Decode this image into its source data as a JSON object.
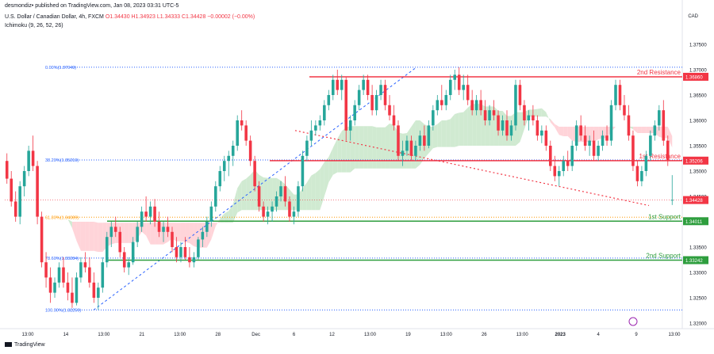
{
  "header": {
    "published_by": "desmondiz• published on TradingView.com, Jan 08, 2023 03:31 UTC-5",
    "symbol_line": "U.S. Dollar / Canadian Dollar, 4h, FXCM",
    "ohlc": "O1.34430 H1.34923 L1.34333 C1.34428 −0.00002 (−0.00%)",
    "indicator": "Ichimoku (9, 26, 52, 26)",
    "currency": "CAD"
  },
  "footer": {
    "logo_text": "TradingView"
  },
  "colors": {
    "up": "#26a69a",
    "down": "#f23645",
    "resistance": "#f23645",
    "support": "#2e9e3e",
    "fib_blue": "#2962ff",
    "fib_orange": "#ff9800",
    "cloud_bull": "#c8e6c9",
    "cloud_bear": "#ffcdd2",
    "axis_text": "#131722"
  },
  "chart_data": {
    "type": "candlestick",
    "y_range": [
      1.32,
      1.3775
    ],
    "y_ticks": [
      "1.37500",
      "1.37000",
      "1.36500",
      "1.36000",
      "1.35500",
      "1.35000",
      "1.34500",
      "1.34000",
      "1.33500",
      "1.33000",
      "1.32500",
      "1.32000"
    ],
    "x_tick_labels": [
      "13:00",
      "14",
      "13:00",
      "21",
      "13:00",
      "28",
      "Dec",
      "6",
      "12",
      "13:00",
      "19",
      "13:00",
      "26",
      "13:00",
      "2023",
      "4",
      "9",
      "13:00"
    ],
    "levels": [
      {
        "label": "2nd Resistance",
        "value": 1.3686,
        "value_text": "1.36860",
        "kind": "resistance"
      },
      {
        "label": "1st Resistance",
        "value": 1.35206,
        "value_text": "1.35206",
        "kind": "resistance"
      },
      {
        "label": "1st Support",
        "value": 1.34011,
        "value_text": "1.34011",
        "kind": "support"
      },
      {
        "label": "2nd Support",
        "value": 1.33242,
        "value_text": "1.33242",
        "kind": "support"
      }
    ],
    "last_price": {
      "value": 1.34428,
      "value_text": "1.34428"
    },
    "fib_levels": [
      {
        "label": "0.00%(1.37049)",
        "value": 1.37049,
        "color": "blue"
      },
      {
        "label": "38.20%(1.35219)",
        "value": 1.35219,
        "color": "blue"
      },
      {
        "label": "61.80%(1.34089)",
        "value": 1.34089,
        "color": "orange"
      },
      {
        "label": "78.60%(1.33284)",
        "value": 1.33284,
        "color": "blue"
      },
      {
        "label": "100.00%(1.32259)",
        "value": 1.32259,
        "color": "blue"
      }
    ],
    "candles": [
      [
        1.352,
        1.3535,
        1.3475,
        1.3485
      ],
      [
        1.3485,
        1.35,
        1.343,
        1.344
      ],
      [
        1.344,
        1.346,
        1.34,
        1.341
      ],
      [
        1.341,
        1.348,
        1.3395,
        1.347
      ],
      [
        1.347,
        1.351,
        1.345,
        1.35
      ],
      [
        1.35,
        1.355,
        1.349,
        1.354
      ],
      [
        1.354,
        1.357,
        1.35,
        1.351
      ],
      [
        1.351,
        1.352,
        1.3395,
        1.341
      ],
      [
        1.341,
        1.342,
        1.331,
        1.332
      ],
      [
        1.332,
        1.334,
        1.327,
        1.329
      ],
      [
        1.329,
        1.331,
        1.324,
        1.326
      ],
      [
        1.326,
        1.329,
        1.325,
        1.328
      ],
      [
        1.328,
        1.332,
        1.327,
        1.331
      ],
      [
        1.331,
        1.333,
        1.327,
        1.328
      ],
      [
        1.328,
        1.33,
        1.3245,
        1.326
      ],
      [
        1.326,
        1.329,
        1.323,
        1.324
      ],
      [
        1.324,
        1.33,
        1.3235,
        1.329
      ],
      [
        1.329,
        1.333,
        1.328,
        1.332
      ],
      [
        1.332,
        1.334,
        1.33,
        1.331
      ],
      [
        1.331,
        1.333,
        1.327,
        1.328
      ],
      [
        1.328,
        1.33,
        1.324,
        1.325
      ],
      [
        1.325,
        1.328,
        1.3226,
        1.327
      ],
      [
        1.327,
        1.333,
        1.326,
        1.332
      ],
      [
        1.332,
        1.338,
        1.331,
        1.337
      ],
      [
        1.337,
        1.34,
        1.335,
        1.339
      ],
      [
        1.339,
        1.341,
        1.337,
        1.338
      ],
      [
        1.338,
        1.339,
        1.333,
        1.334
      ],
      [
        1.334,
        1.335,
        1.33,
        1.331
      ],
      [
        1.331,
        1.333,
        1.3295,
        1.332
      ],
      [
        1.332,
        1.337,
        1.3315,
        1.336
      ],
      [
        1.336,
        1.34,
        1.335,
        1.339
      ],
      [
        1.339,
        1.343,
        1.338,
        1.342
      ],
      [
        1.342,
        1.345,
        1.34,
        1.341
      ],
      [
        1.341,
        1.344,
        1.3395,
        1.343
      ],
      [
        1.343,
        1.3445,
        1.339,
        1.34
      ],
      [
        1.34,
        1.342,
        1.337,
        1.338
      ],
      [
        1.338,
        1.34,
        1.336,
        1.339
      ],
      [
        1.339,
        1.341,
        1.337,
        1.338
      ],
      [
        1.338,
        1.339,
        1.334,
        1.335
      ],
      [
        1.335,
        1.337,
        1.332,
        1.333
      ],
      [
        1.333,
        1.336,
        1.332,
        1.335
      ],
      [
        1.335,
        1.337,
        1.3325,
        1.333
      ],
      [
        1.333,
        1.335,
        1.331,
        1.332
      ],
      [
        1.332,
        1.334,
        1.331,
        1.333
      ],
      [
        1.333,
        1.337,
        1.3325,
        1.3365
      ],
      [
        1.3365,
        1.339,
        1.335,
        1.338
      ],
      [
        1.338,
        1.341,
        1.337,
        1.34
      ],
      [
        1.34,
        1.344,
        1.339,
        1.343
      ],
      [
        1.343,
        1.348,
        1.342,
        1.347
      ],
      [
        1.347,
        1.351,
        1.346,
        1.35
      ],
      [
        1.35,
        1.353,
        1.348,
        1.352
      ],
      [
        1.352,
        1.354,
        1.349,
        1.353
      ],
      [
        1.353,
        1.356,
        1.351,
        1.355
      ],
      [
        1.355,
        1.361,
        1.354,
        1.36
      ],
      [
        1.36,
        1.362,
        1.358,
        1.359
      ],
      [
        1.359,
        1.36,
        1.355,
        1.356
      ],
      [
        1.356,
        1.357,
        1.351,
        1.352
      ],
      [
        1.352,
        1.353,
        1.346,
        1.347
      ],
      [
        1.347,
        1.348,
        1.342,
        1.343
      ],
      [
        1.343,
        1.344,
        1.34,
        1.341
      ],
      [
        1.341,
        1.343,
        1.3395,
        1.342
      ],
      [
        1.342,
        1.344,
        1.34,
        1.343
      ],
      [
        1.343,
        1.346,
        1.342,
        1.345
      ],
      [
        1.345,
        1.348,
        1.344,
        1.347
      ],
      [
        1.347,
        1.349,
        1.343,
        1.344
      ],
      [
        1.344,
        1.345,
        1.34,
        1.341
      ],
      [
        1.341,
        1.343,
        1.3395,
        1.342
      ],
      [
        1.342,
        1.348,
        1.341,
        1.347
      ],
      [
        1.347,
        1.354,
        1.346,
        1.353
      ],
      [
        1.353,
        1.357,
        1.352,
        1.356
      ],
      [
        1.356,
        1.36,
        1.355,
        1.358
      ],
      [
        1.358,
        1.36,
        1.357,
        1.359
      ],
      [
        1.359,
        1.361,
        1.358,
        1.36
      ],
      [
        1.36,
        1.364,
        1.359,
        1.363
      ],
      [
        1.363,
        1.366,
        1.362,
        1.365
      ],
      [
        1.365,
        1.369,
        1.364,
        1.368
      ],
      [
        1.368,
        1.37,
        1.365,
        1.366
      ],
      [
        1.366,
        1.369,
        1.364,
        1.368
      ],
      [
        1.368,
        1.3685,
        1.356,
        1.358
      ],
      [
        1.358,
        1.361,
        1.356,
        1.36
      ],
      [
        1.36,
        1.364,
        1.359,
        1.363
      ],
      [
        1.363,
        1.367,
        1.362,
        1.366
      ],
      [
        1.366,
        1.369,
        1.365,
        1.368
      ],
      [
        1.368,
        1.369,
        1.364,
        1.365
      ],
      [
        1.365,
        1.367,
        1.361,
        1.362
      ],
      [
        1.362,
        1.366,
        1.361,
        1.365
      ],
      [
        1.365,
        1.368,
        1.364,
        1.367
      ],
      [
        1.367,
        1.368,
        1.362,
        1.363
      ],
      [
        1.363,
        1.365,
        1.36,
        1.361
      ],
      [
        1.361,
        1.363,
        1.358,
        1.359
      ],
      [
        1.359,
        1.36,
        1.352,
        1.353
      ],
      [
        1.353,
        1.356,
        1.351,
        1.354
      ],
      [
        1.354,
        1.357,
        1.353,
        1.356
      ],
      [
        1.356,
        1.357,
        1.352,
        1.353
      ],
      [
        1.353,
        1.356,
        1.352,
        1.355
      ],
      [
        1.355,
        1.358,
        1.354,
        1.357
      ],
      [
        1.357,
        1.359,
        1.354,
        1.355
      ],
      [
        1.355,
        1.36,
        1.3545,
        1.359
      ],
      [
        1.359,
        1.363,
        1.358,
        1.362
      ],
      [
        1.362,
        1.365,
        1.361,
        1.364
      ],
      [
        1.364,
        1.367,
        1.362,
        1.363
      ],
      [
        1.363,
        1.366,
        1.362,
        1.365
      ],
      [
        1.365,
        1.369,
        1.364,
        1.368
      ],
      [
        1.368,
        1.37,
        1.366,
        1.369
      ],
      [
        1.369,
        1.3705,
        1.365,
        1.366
      ],
      [
        1.366,
        1.369,
        1.364,
        1.367
      ],
      [
        1.367,
        1.369,
        1.363,
        1.364
      ],
      [
        1.364,
        1.366,
        1.361,
        1.362
      ],
      [
        1.362,
        1.365,
        1.361,
        1.364
      ],
      [
        1.364,
        1.366,
        1.361,
        1.362
      ],
      [
        1.362,
        1.364,
        1.359,
        1.36
      ],
      [
        1.36,
        1.363,
        1.359,
        1.362
      ],
      [
        1.362,
        1.364,
        1.36,
        1.361
      ],
      [
        1.361,
        1.362,
        1.357,
        1.358
      ],
      [
        1.358,
        1.361,
        1.357,
        1.36
      ],
      [
        1.36,
        1.362,
        1.356,
        1.357
      ],
      [
        1.357,
        1.36,
        1.356,
        1.359
      ],
      [
        1.359,
        1.368,
        1.358,
        1.367
      ],
      [
        1.367,
        1.368,
        1.362,
        1.363
      ],
      [
        1.363,
        1.364,
        1.359,
        1.36
      ],
      [
        1.36,
        1.362,
        1.358,
        1.361
      ],
      [
        1.361,
        1.363,
        1.359,
        1.36
      ],
      [
        1.36,
        1.361,
        1.356,
        1.357
      ],
      [
        1.357,
        1.359,
        1.3555,
        1.358
      ],
      [
        1.358,
        1.359,
        1.354,
        1.355
      ],
      [
        1.355,
        1.356,
        1.35,
        1.351
      ],
      [
        1.351,
        1.353,
        1.348,
        1.349
      ],
      [
        1.349,
        1.351,
        1.347,
        1.35
      ],
      [
        1.35,
        1.353,
        1.349,
        1.352
      ],
      [
        1.352,
        1.354,
        1.35,
        1.351
      ],
      [
        1.351,
        1.356,
        1.35,
        1.355
      ],
      [
        1.355,
        1.36,
        1.354,
        1.359
      ],
      [
        1.359,
        1.361,
        1.356,
        1.357
      ],
      [
        1.357,
        1.359,
        1.354,
        1.355
      ],
      [
        1.355,
        1.357,
        1.353,
        1.356
      ],
      [
        1.356,
        1.358,
        1.352,
        1.353
      ],
      [
        1.353,
        1.356,
        1.352,
        1.355
      ],
      [
        1.355,
        1.358,
        1.354,
        1.357
      ],
      [
        1.357,
        1.359,
        1.355,
        1.356
      ],
      [
        1.356,
        1.364,
        1.355,
        1.363
      ],
      [
        1.363,
        1.368,
        1.362,
        1.367
      ],
      [
        1.367,
        1.368,
        1.362,
        1.363
      ],
      [
        1.363,
        1.365,
        1.36,
        1.361
      ],
      [
        1.361,
        1.363,
        1.356,
        1.357
      ],
      [
        1.357,
        1.358,
        1.35,
        1.351
      ],
      [
        1.351,
        1.352,
        1.347,
        1.348
      ],
      [
        1.348,
        1.351,
        1.347,
        1.35
      ],
      [
        1.35,
        1.354,
        1.349,
        1.353
      ],
      [
        1.353,
        1.358,
        1.352,
        1.357
      ],
      [
        1.357,
        1.36,
        1.356,
        1.359
      ],
      [
        1.359,
        1.363,
        1.358,
        1.362
      ],
      [
        1.362,
        1.364,
        1.355,
        1.356
      ],
      [
        1.356,
        1.357,
        1.351,
        1.352
      ],
      [
        1.3443,
        1.3492,
        1.3433,
        1.3443
      ]
    ]
  }
}
